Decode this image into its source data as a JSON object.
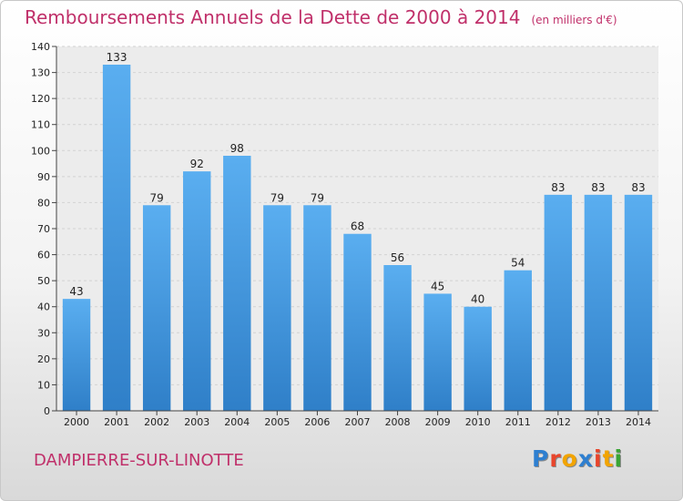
{
  "header": {
    "title": "Remboursements Annuels de la Dette de 2000 à 2014",
    "subtitle": "(en milliers d'€)"
  },
  "footer": {
    "city": "DAMPIERRE-SUR-LINOTTE",
    "logo": "Proxiti",
    "logo_colors": [
      "#2e7fd0",
      "#e8452c",
      "#f2a400",
      "#2e7fd0",
      "#e8452c",
      "#f2a400",
      "#3aa535"
    ]
  },
  "chart_data": {
    "type": "bar",
    "title": "Remboursements Annuels de la Dette de 2000 à 2014",
    "subtitle": "(en milliers d'€)",
    "categories": [
      "2000",
      "2001",
      "2002",
      "2003",
      "2004",
      "2005",
      "2006",
      "2007",
      "2008",
      "2009",
      "2010",
      "2011",
      "2012",
      "2013",
      "2014"
    ],
    "values": [
      43,
      133,
      79,
      92,
      98,
      79,
      79,
      68,
      56,
      45,
      40,
      54,
      83,
      83,
      83
    ],
    "ylim": [
      0,
      140
    ],
    "yticks": [
      0,
      10,
      20,
      30,
      40,
      50,
      60,
      70,
      80,
      90,
      100,
      110,
      120,
      130,
      140
    ],
    "grid": true,
    "bar_color_top": "#5aaef0",
    "bar_color_bottom": "#2f7fc8"
  }
}
